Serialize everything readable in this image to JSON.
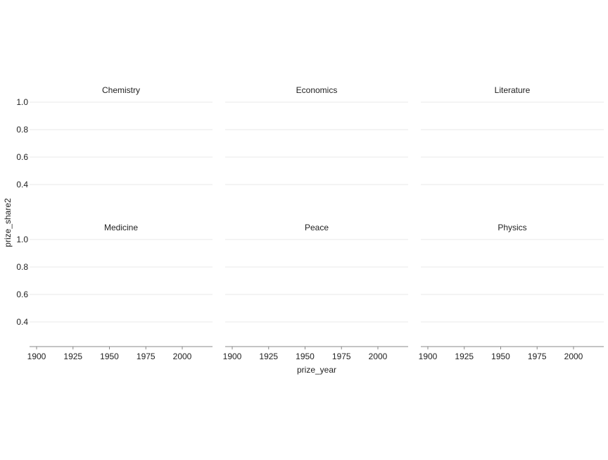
{
  "chart_data": {
    "type": "scatter",
    "xlabel": "prize_year",
    "ylabel": "prize_share2",
    "xlim": [
      1895,
      2020
    ],
    "ylim": [
      0.22,
      1.0
    ],
    "x_ticks": [
      1900,
      1925,
      1950,
      1975,
      2000
    ],
    "y_ticks": [
      1.0,
      0.8,
      0.6,
      0.4
    ],
    "y_tick_labels": [
      "1.0",
      "0.8",
      "0.6",
      "0.4"
    ],
    "grid": "horizontal",
    "facets": [
      {
        "title": "Chemistry",
        "points": []
      },
      {
        "title": "Economics",
        "points": []
      },
      {
        "title": "Literature",
        "points": []
      },
      {
        "title": "Medicine",
        "points": []
      },
      {
        "title": "Peace",
        "points": []
      },
      {
        "title": "Physics",
        "points": []
      }
    ],
    "colors": {
      "grid": "#e8e8e8",
      "axis": "#888888",
      "text": "#222222"
    }
  }
}
